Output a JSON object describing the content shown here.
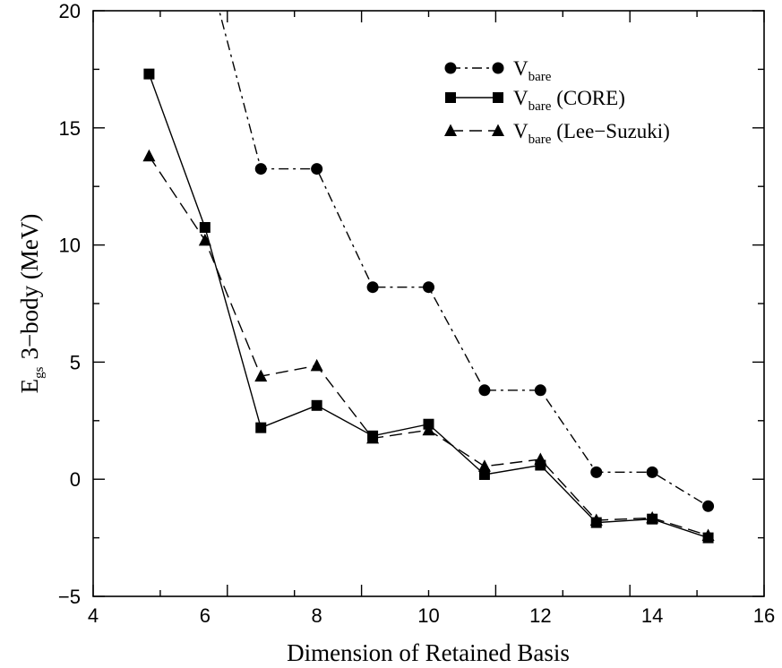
{
  "chart_data": {
    "type": "line",
    "xlabel": "Dimension of Retained Basis",
    "ylabel": {
      "main": "E",
      "sub": "gs",
      "rest": "3−body (MeV)"
    },
    "xlim": [
      4,
      16
    ],
    "ylim": [
      -5,
      20
    ],
    "x_ticks": [
      "4",
      "6",
      "8",
      "10",
      "12",
      "14",
      "16"
    ],
    "y_ticks": [
      "−5",
      "0",
      "5",
      "10",
      "15",
      "20"
    ],
    "grid": false,
    "legend_position": "top-right",
    "series": [
      {
        "name": "V",
        "name_sub": "bare",
        "name_suffix": "",
        "marker": "circle",
        "line": "dash-dot",
        "x": [
          6.2,
          7,
          8,
          9,
          10,
          11,
          12,
          13,
          14,
          15
        ],
        "y": [
          20.5,
          13.25,
          13.25,
          8.2,
          8.2,
          3.8,
          3.8,
          0.3,
          0.3,
          -1.15
        ]
      },
      {
        "name": "V",
        "name_sub": "bare",
        "name_suffix": " (CORE)",
        "marker": "square",
        "line": "solid",
        "x": [
          5,
          6,
          7,
          8,
          9,
          10,
          11,
          12,
          13,
          14,
          15
        ],
        "y": [
          17.3,
          10.75,
          2.2,
          3.15,
          1.85,
          2.35,
          0.2,
          0.6,
          -1.85,
          -1.7,
          -2.5
        ]
      },
      {
        "name": "V",
        "name_sub": "bare",
        "name_suffix": " (Lee−Suzuki)",
        "marker": "triangle",
        "line": "dashed",
        "x": [
          5,
          6,
          7,
          8,
          9,
          10,
          11,
          12,
          13,
          14,
          15
        ],
        "y": [
          13.8,
          10.2,
          4.4,
          4.85,
          1.75,
          2.1,
          0.55,
          0.85,
          -1.75,
          -1.65,
          -2.4
        ]
      }
    ]
  }
}
